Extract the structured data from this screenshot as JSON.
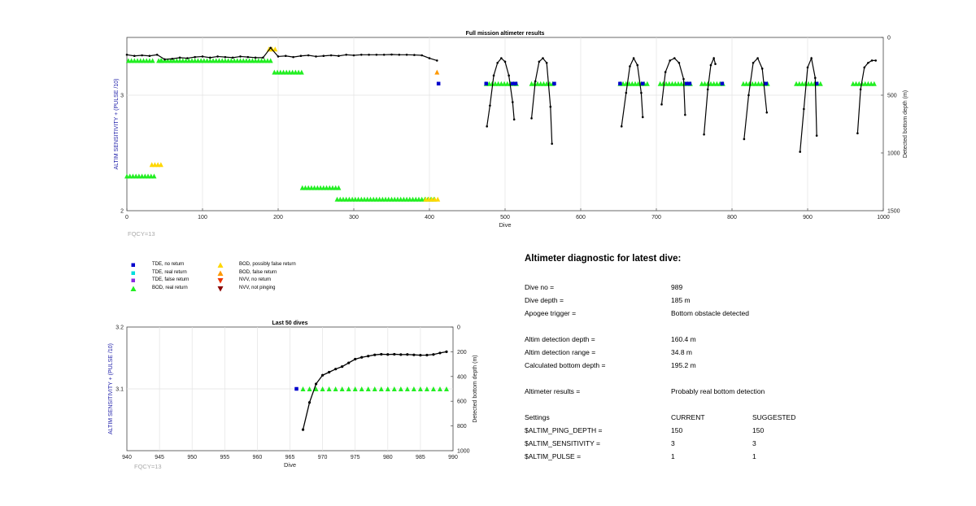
{
  "chart_data": [
    {
      "type": "scatter",
      "title": "Full mission altimeter results",
      "xlabel": "Dive",
      "ylabel_left": "ALTIM SENSITIVITY + (PULSE /10)",
      "ylabel_right": "Detected bottom depth (m)",
      "xlim": [
        0,
        1000
      ],
      "ylim_left": [
        2,
        3.5
      ],
      "ylim_right": [
        1500,
        0
      ],
      "x_ticks": [
        "0",
        "100",
        "200",
        "300",
        "400",
        "500",
        "600",
        "700",
        "800",
        "900",
        "1000"
      ],
      "y_left_ticks": [
        "2",
        "3"
      ],
      "y_right_ticks": [
        "0",
        "500",
        "1000",
        "1500"
      ],
      "grid": true,
      "annotation": "FQCY=13",
      "series": [
        {
          "name": "BOD, real return",
          "color": "#22ee22",
          "segments": [
            {
              "x": [
                2,
                35
              ],
              "y": 3.3
            },
            {
              "x": 45,
              "y": 3.3
            },
            {
              "x": [
                42,
                190
              ],
              "y": 3.3
            },
            {
              "x": [
                195,
                232
              ],
              "y": 3.2
            },
            {
              "x": [
                0,
                36
              ],
              "y": 2.3
            },
            {
              "x": [
                232,
                283
              ],
              "y": 2.2
            },
            {
              "x": [
                278,
                408
              ],
              "y": 2.1
            },
            {
              "x": [
                475,
                515
              ],
              "y": 3.1
            },
            {
              "x": [
                535,
                565
              ],
              "y": 3.1
            },
            {
              "x": [
                652,
                688
              ],
              "y": 3.1
            },
            {
              "x": [
                705,
                745
              ],
              "y": 3.1
            },
            {
              "x": [
                760,
                788
              ],
              "y": 3.1
            },
            {
              "x": [
                815,
                848
              ],
              "y": 3.1
            },
            {
              "x": [
                885,
                918
              ],
              "y": 3.1
            },
            {
              "x": [
                960,
                990
              ],
              "y": 3.1
            }
          ]
        },
        {
          "name": "BOD, possibly false return",
          "color": "#ffd700",
          "segments": [
            {
              "x": [
                188,
                196
              ],
              "y": 3.4
            },
            {
              "x": [
                33,
                45
              ],
              "y": 2.4
            },
            {
              "x": [
                395,
                412
              ],
              "y": 2.1
            }
          ]
        },
        {
          "name": "BOD, false return",
          "color": "#ff9900",
          "segments": [
            {
              "x": [
                410,
                410
              ],
              "y": 3.2
            }
          ]
        },
        {
          "name": "TDE, no return",
          "color": "#0000cc",
          "segments": [
            {
              "x": [
                412,
                412
              ],
              "y": 3.1
            },
            {
              "x": [
                475,
                475
              ],
              "y": 3.1
            },
            {
              "x": [
                510,
                515
              ],
              "y": 3.1
            },
            {
              "x": [
                565,
                568
              ],
              "y": 3.1
            },
            {
              "x": [
                652,
                655
              ],
              "y": 3.1
            },
            {
              "x": [
                682,
                685
              ],
              "y": 3.1
            },
            {
              "x": [
                740,
                745
              ],
              "y": 3.1
            },
            {
              "x": [
                787,
                790
              ],
              "y": 3.1
            },
            {
              "x": [
                845,
                848
              ],
              "y": 3.1
            },
            {
              "x": [
                912,
                915
              ],
              "y": 3.1
            }
          ]
        }
      ],
      "depth_line": [
        {
          "x": [
            0,
            10,
            20,
            30,
            40,
            50,
            60,
            70,
            80,
            90,
            100,
            110,
            120,
            130,
            140,
            150,
            160,
            170,
            180,
            190,
            200,
            210,
            220,
            230,
            240,
            250,
            260,
            270,
            280,
            290,
            300,
            310,
            320,
            330,
            340,
            350,
            360,
            370,
            380,
            390,
            400,
            410
          ],
          "y": [
            150,
            160,
            155,
            160,
            150,
            190,
            185,
            175,
            180,
            170,
            165,
            175,
            165,
            170,
            175,
            165,
            170,
            175,
            175,
            90,
            165,
            160,
            170,
            160,
            155,
            165,
            160,
            155,
            160,
            150,
            155,
            150,
            150,
            150,
            150,
            148,
            150,
            150,
            152,
            155,
            180,
            200
          ]
        },
        {
          "x": [
            476,
            480,
            485,
            490,
            495,
            500,
            505,
            510,
            512
          ],
          "y": [
            770,
            590,
            330,
            220,
            180,
            210,
            330,
            560,
            710
          ]
        },
        {
          "x": [
            535,
            540,
            545,
            550,
            555,
            560,
            562
          ],
          "y": [
            700,
            380,
            210,
            180,
            220,
            600,
            920
          ]
        },
        {
          "x": [
            654,
            660,
            665,
            670,
            675,
            680,
            682
          ],
          "y": [
            770,
            480,
            250,
            180,
            240,
            480,
            690
          ]
        },
        {
          "x": [
            707,
            712,
            718,
            724,
            730,
            736,
            738
          ],
          "y": [
            580,
            300,
            200,
            180,
            220,
            360,
            670
          ]
        },
        {
          "x": [
            763,
            768,
            772,
            776,
            778
          ],
          "y": [
            840,
            450,
            240,
            180,
            230
          ]
        },
        {
          "x": [
            816,
            822,
            828,
            834,
            840,
            846
          ],
          "y": [
            880,
            500,
            220,
            180,
            270,
            650
          ]
        },
        {
          "x": [
            890,
            895,
            900,
            905,
            910,
            912
          ],
          "y": [
            990,
            620,
            260,
            180,
            350,
            850
          ]
        },
        {
          "x": [
            966,
            970,
            975,
            980,
            985,
            990
          ],
          "y": [
            830,
            450,
            260,
            220,
            200,
            200
          ]
        }
      ]
    },
    {
      "type": "scatter",
      "title": "Last 50 dives",
      "xlabel": "Dive",
      "ylabel_left": "ALTIM SENSITIVITY + (PULSE /10)",
      "ylabel_right": "Detected bottom depth (m)",
      "xlim": [
        940,
        990
      ],
      "ylim_left": [
        3.0,
        3.2
      ],
      "ylim_right": [
        1000,
        0
      ],
      "x_ticks": [
        "940",
        "945",
        "950",
        "955",
        "960",
        "965",
        "970",
        "975",
        "980",
        "985",
        "990"
      ],
      "y_left_ticks": [
        "3.1",
        "3.2"
      ],
      "y_right_ticks": [
        "0",
        "200",
        "400",
        "600",
        "800",
        "1000"
      ],
      "grid": true,
      "annotation": "FQCY=13",
      "tde_no_return": [
        {
          "x": 966,
          "y": 3.1
        }
      ],
      "bod_real_return": [
        {
          "x": 967,
          "y": 3.1
        },
        {
          "x": 968,
          "y": 3.1
        },
        {
          "x": 969,
          "y": 3.1
        },
        {
          "x": 970,
          "y": 3.1
        },
        {
          "x": 971,
          "y": 3.1
        },
        {
          "x": 972,
          "y": 3.1
        },
        {
          "x": 973,
          "y": 3.1
        },
        {
          "x": 974,
          "y": 3.1
        },
        {
          "x": 975,
          "y": 3.1
        },
        {
          "x": 976,
          "y": 3.1
        },
        {
          "x": 977,
          "y": 3.1
        },
        {
          "x": 978,
          "y": 3.1
        },
        {
          "x": 979,
          "y": 3.1
        },
        {
          "x": 980,
          "y": 3.1
        },
        {
          "x": 981,
          "y": 3.1
        },
        {
          "x": 982,
          "y": 3.1
        },
        {
          "x": 983,
          "y": 3.1
        },
        {
          "x": 984,
          "y": 3.1
        },
        {
          "x": 985,
          "y": 3.1
        },
        {
          "x": 986,
          "y": 3.1
        },
        {
          "x": 987,
          "y": 3.1
        },
        {
          "x": 988,
          "y": 3.1
        },
        {
          "x": 989,
          "y": 3.1
        }
      ],
      "depth_points": [
        {
          "x": 967,
          "y": 830
        },
        {
          "x": 968,
          "y": 610
        },
        {
          "x": 969,
          "y": 460
        },
        {
          "x": 970,
          "y": 390
        },
        {
          "x": 971,
          "y": 365
        },
        {
          "x": 972,
          "y": 340
        },
        {
          "x": 973,
          "y": 320
        },
        {
          "x": 974,
          "y": 290
        },
        {
          "x": 975,
          "y": 260
        },
        {
          "x": 976,
          "y": 245
        },
        {
          "x": 977,
          "y": 235
        },
        {
          "x": 978,
          "y": 225
        },
        {
          "x": 979,
          "y": 220
        },
        {
          "x": 980,
          "y": 222
        },
        {
          "x": 981,
          "y": 220
        },
        {
          "x": 982,
          "y": 223
        },
        {
          "x": 983,
          "y": 222
        },
        {
          "x": 984,
          "y": 225
        },
        {
          "x": 985,
          "y": 228
        },
        {
          "x": 986,
          "y": 227
        },
        {
          "x": 987,
          "y": 222
        },
        {
          "x": 988,
          "y": 210
        },
        {
          "x": 989,
          "y": 200
        }
      ]
    }
  ],
  "legend": [
    {
      "label": "TDE, no return",
      "marker": "square",
      "color": "#0000cc"
    },
    {
      "label": "TDE, real return",
      "marker": "square",
      "color": "#00dddd"
    },
    {
      "label": "TDE, false return",
      "marker": "square",
      "color": "#8a2be2"
    },
    {
      "label": "BOD, real return",
      "marker": "triangle-up",
      "color": "#22ee22"
    },
    {
      "label": "BOD, possibly false return",
      "marker": "triangle-up",
      "color": "#ffd700"
    },
    {
      "label": "BOD, false return",
      "marker": "triangle-up",
      "color": "#ff9900"
    },
    {
      "label": "NVV, no return",
      "marker": "triangle-down",
      "color": "#ee3300"
    },
    {
      "label": "NVV, not pinging",
      "marker": "triangle-down",
      "color": "#8b0000"
    }
  ],
  "diagnostic": {
    "title": "Altimeter diagnostic for latest dive:",
    "rows": [
      {
        "label": "Dive no =",
        "value": "989"
      },
      {
        "label": "Dive depth =",
        "value": "185 m"
      },
      {
        "label": "Apogee trigger =",
        "value": "Bottom obstacle detected"
      },
      {
        "label": "Altim detection depth =",
        "value": "160.4 m"
      },
      {
        "label": "Altim detection range =",
        "value": "34.8 m"
      },
      {
        "label": "Calculated bottom depth =",
        "value": "195.2 m"
      },
      {
        "label": "Altimeter results =",
        "value": "Probably real bottom detection"
      }
    ],
    "settings_header": {
      "label": "Settings",
      "current": "CURRENT",
      "suggested": "SUGGESTED"
    },
    "settings": [
      {
        "label": "$ALTIM_PING_DEPTH =",
        "current": "150",
        "suggested": "150"
      },
      {
        "label": "$ALTIM_SENSITIVITY =",
        "current": "3",
        "suggested": "3"
      },
      {
        "label": "$ALTIM_PULSE =",
        "current": "1",
        "suggested": "1"
      }
    ]
  }
}
